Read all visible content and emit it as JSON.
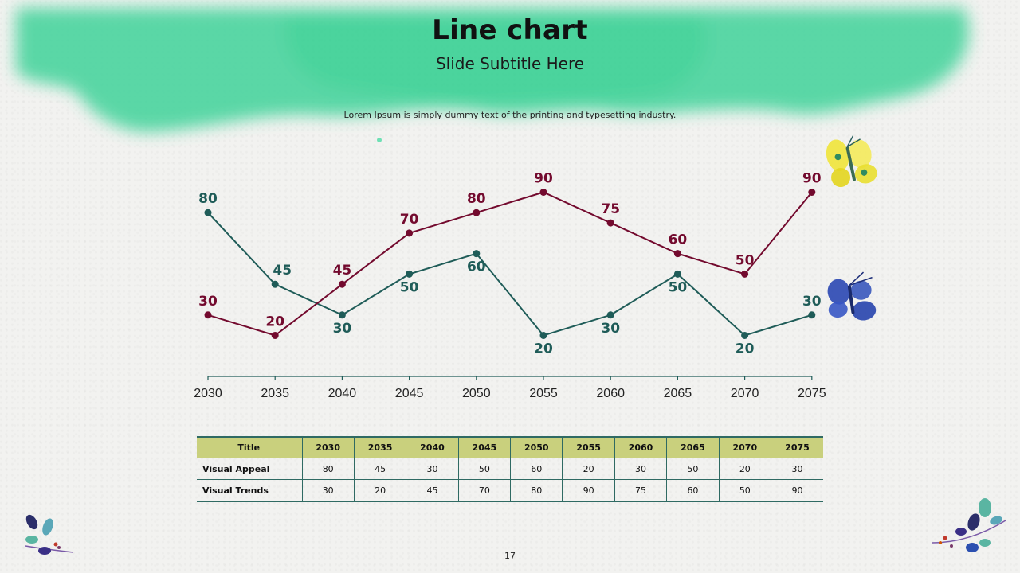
{
  "slide": {
    "title": "Line chart",
    "subtitle": "Slide Subtitle Here",
    "description": "Lorem Ipsum is simply dummy text of the printing and typesetting industry.",
    "page_number": "17"
  },
  "colors": {
    "visual_appeal": "#1f5c58",
    "visual_trends": "#730a2e",
    "table_header": "#c9d07d",
    "wash": "#3fd39a"
  },
  "chart_data": {
    "type": "line",
    "title": "",
    "xlabel": "",
    "ylabel": "",
    "categories": [
      "2030",
      "2035",
      "2040",
      "2045",
      "2050",
      "2055",
      "2060",
      "2065",
      "2070",
      "2075"
    ],
    "series": [
      {
        "name": "Visual Appeal",
        "values": [
          80,
          45,
          30,
          50,
          60,
          20,
          30,
          50,
          20,
          30
        ]
      },
      {
        "name": "Visual Trends",
        "values": [
          30,
          20,
          45,
          70,
          80,
          90,
          75,
          60,
          50,
          90
        ]
      }
    ],
    "ylim": [
      0,
      100
    ],
    "grid": false,
    "legend": "none"
  },
  "table": {
    "header_label": "Title",
    "columns": [
      "2030",
      "2035",
      "2040",
      "2045",
      "2050",
      "2055",
      "2060",
      "2065",
      "2070",
      "2075"
    ],
    "rows": [
      {
        "label": "Visual Appeal",
        "values": [
          "80",
          "45",
          "30",
          "50",
          "60",
          "20",
          "30",
          "50",
          "20",
          "30"
        ]
      },
      {
        "label": "Visual Trends",
        "values": [
          "30",
          "20",
          "45",
          "70",
          "80",
          "90",
          "75",
          "60",
          "50",
          "90"
        ]
      }
    ]
  },
  "decorations": [
    "yellow-butterfly-icon",
    "blue-butterfly-icon",
    "leaf-sprig-left-icon",
    "leaf-sprig-right-icon"
  ]
}
